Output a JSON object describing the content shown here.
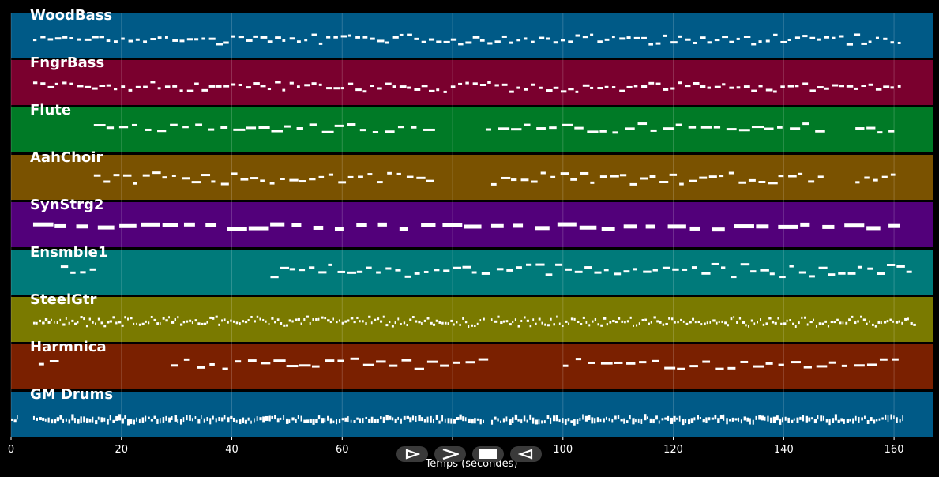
{
  "chart_data": {
    "type": "piano-roll",
    "xlabel": "Temps (secondes)",
    "xlim": [
      0,
      167
    ],
    "x_ticks": [
      0,
      20,
      40,
      60,
      80,
      100,
      120,
      140,
      160
    ],
    "x_tick_labels": [
      "0",
      "20",
      "40",
      "60",
      "",
      "100",
      "120",
      "140",
      "160"
    ],
    "grid": true,
    "tracks": [
      {
        "name": "WoodBass",
        "color": "#005A87",
        "density": 1.6,
        "spans": [
          [
            4,
            162
          ]
        ],
        "rows": [
          0.55,
          0.6,
          0.65
        ],
        "notes": 120
      },
      {
        "name": "FngrBass",
        "color": "#7A002E",
        "density": 1.6,
        "spans": [
          [
            4,
            162
          ]
        ],
        "rows": [
          0.55,
          0.6,
          0.65
        ],
        "notes": 120
      },
      {
        "name": "Flute",
        "color": "#007A26",
        "density": 1.2,
        "spans": [
          [
            15,
            77
          ],
          [
            86,
            148
          ],
          [
            153,
            161
          ]
        ],
        "rows": [
          0.42,
          0.5
        ],
        "notes": 70
      },
      {
        "name": "AahChoir",
        "color": "#7A5200",
        "density": 1.2,
        "spans": [
          [
            15,
            77
          ],
          [
            87,
            148
          ],
          [
            153,
            161
          ]
        ],
        "rows": [
          0.45,
          0.5,
          0.55,
          0.6
        ],
        "notes": 90
      },
      {
        "name": "SynStrg2",
        "color": "#52007A",
        "density": 1.0,
        "spans": [
          [
            4,
            86
          ],
          [
            87,
            163
          ]
        ],
        "rows": [
          0.55
        ],
        "notes": 40
      },
      {
        "name": "Ensmble1",
        "color": "#007A7A",
        "density": 1.2,
        "spans": [
          [
            9,
            16
          ],
          [
            47,
            87
          ],
          [
            88,
            164
          ]
        ],
        "rows": [
          0.38,
          0.45,
          0.5,
          0.55
        ],
        "notes": 90
      },
      {
        "name": "SteelGtr",
        "color": "#7A7A00",
        "density": 3.0,
        "spans": [
          [
            4,
            86
          ],
          [
            87,
            164
          ]
        ],
        "rows": [
          0.5,
          0.55,
          0.6
        ],
        "notes": 300
      },
      {
        "name": "Harmnica",
        "color": "#7A2000",
        "density": 1.0,
        "spans": [
          [
            5,
            9
          ],
          [
            29,
            87
          ],
          [
            100,
            162
          ]
        ],
        "rows": [
          0.38,
          0.45,
          0.5
        ],
        "notes": 70
      },
      {
        "name": "GM Drums",
        "color": "#005A87",
        "density": 4.0,
        "spans": [
          [
            0,
            1.5
          ],
          [
            4,
            86
          ],
          [
            87,
            162
          ]
        ],
        "rows": [
          0.62
        ],
        "notes": 300
      }
    ]
  },
  "controls": {
    "play_icon": "play-outline-icon",
    "fast_forward_icon": "fast-forward-icon",
    "stop_icon": "stop-icon",
    "rewind_icon": "rewind-outline-icon"
  }
}
